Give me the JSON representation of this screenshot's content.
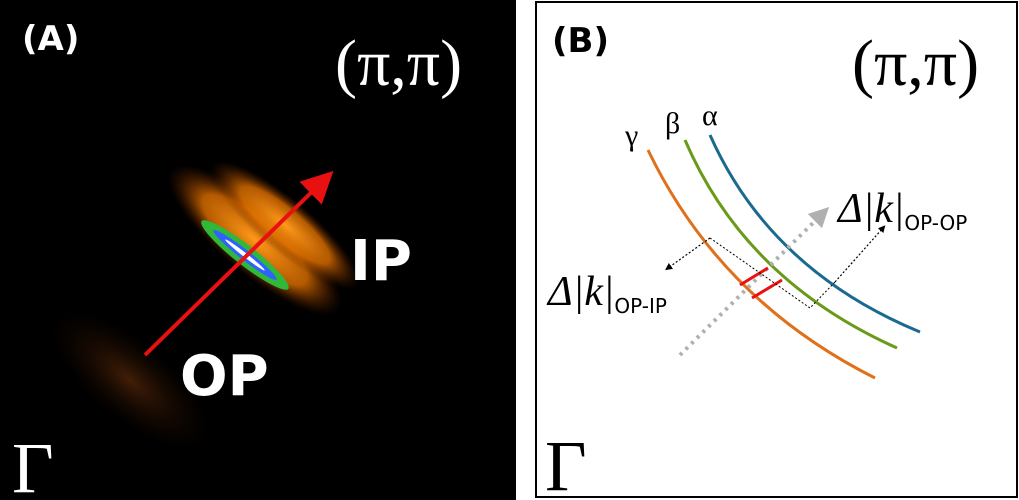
{
  "panels": [
    {
      "label": "(A)",
      "corner_top": "(π,π)",
      "corner_bottom": "Γ",
      "annotations": [
        "IP",
        "OP"
      ]
    },
    {
      "label": "(B)",
      "corner_top": "(π,π)",
      "corner_bottom": "Γ",
      "bands": [
        "γ",
        "β",
        "α"
      ],
      "annotations": [
        {
          "text": "Δ|k|",
          "subscript": "OP-OP"
        },
        {
          "text": "Δ|k|",
          "subscript": "OP-IP"
        }
      ]
    }
  ]
}
